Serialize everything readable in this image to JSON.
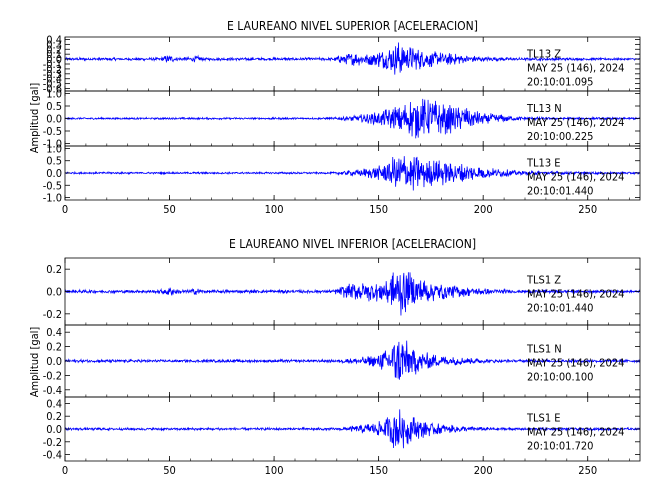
{
  "chart_data": [
    {
      "type": "line",
      "title": "E LAUREANO NIVEL SUPERIOR [ACELERACION]",
      "ylabel": "Amplitud [gal]",
      "xlabel": "",
      "xlim": [
        0,
        275
      ],
      "x_ticks": [
        "0",
        "50",
        "100",
        "150",
        "200",
        "250"
      ],
      "grid": false,
      "color": "#0000ff",
      "panels": [
        {
          "station": "TL13",
          "component": "Z",
          "date": "MAY 25 (146), 2024",
          "time": "20:10:01.095",
          "ylim": [
            -0.65,
            0.45
          ],
          "y_ticks": [
            "0.4",
            "0.3",
            "0.2",
            "0.1",
            "0.0",
            "-0.1",
            "-0.2",
            "-0.3",
            "-0.4",
            "-0.5",
            "-0.6"
          ],
          "envelope": [
            [
              0,
              0.03
            ],
            [
              45,
              0.03
            ],
            [
              50,
              0.1
            ],
            [
              53,
              0.04
            ],
            [
              60,
              0.04
            ],
            [
              63,
              0.08
            ],
            [
              66,
              0.03
            ],
            [
              128,
              0.03
            ],
            [
              132,
              0.1
            ],
            [
              138,
              0.15
            ],
            [
              145,
              0.12
            ],
            [
              150,
              0.18
            ],
            [
              155,
              0.25
            ],
            [
              160,
              0.4
            ],
            [
              163,
              0.3
            ],
            [
              170,
              0.22
            ],
            [
              180,
              0.15
            ],
            [
              190,
              0.1
            ],
            [
              200,
              0.05
            ],
            [
              215,
              0.03
            ],
            [
              275,
              0.02
            ]
          ]
        },
        {
          "station": "TL13",
          "component": "N",
          "date": "MAY 25 (146), 2024",
          "time": "20:10:00.225",
          "ylim": [
            -1.1,
            1.1
          ],
          "y_ticks": [
            "1.0",
            "0.5",
            "0.0",
            "-0.5",
            "-1.0"
          ],
          "envelope": [
            [
              0,
              0.04
            ],
            [
              128,
              0.04
            ],
            [
              140,
              0.15
            ],
            [
              150,
              0.3
            ],
            [
              158,
              0.55
            ],
            [
              165,
              0.85
            ],
            [
              172,
              0.9
            ],
            [
              180,
              0.7
            ],
            [
              190,
              0.5
            ],
            [
              200,
              0.25
            ],
            [
              215,
              0.1
            ],
            [
              230,
              0.05
            ],
            [
              275,
              0.04
            ]
          ]
        },
        {
          "station": "TL13",
          "component": "E",
          "date": "MAY 25 (146), 2024",
          "time": "20:10:01.440",
          "ylim": [
            -1.1,
            1.1
          ],
          "y_ticks": [
            "1.0",
            "0.5",
            "0.0",
            "-0.5",
            "-1.0"
          ],
          "envelope": [
            [
              0,
              0.04
            ],
            [
              128,
              0.04
            ],
            [
              140,
              0.15
            ],
            [
              150,
              0.3
            ],
            [
              157,
              0.7
            ],
            [
              162,
              0.9
            ],
            [
              168,
              0.75
            ],
            [
              175,
              0.6
            ],
            [
              185,
              0.5
            ],
            [
              195,
              0.35
            ],
            [
              205,
              0.2
            ],
            [
              220,
              0.08
            ],
            [
              275,
              0.04
            ]
          ]
        }
      ]
    },
    {
      "type": "line",
      "title": "E LAUREANO NIVEL INFERIOR [ACELERACION]",
      "ylabel": "Amplitud [gal]",
      "xlabel": "",
      "xlim": [
        0,
        275
      ],
      "x_ticks": [
        "0",
        "50",
        "100",
        "150",
        "200",
        "250"
      ],
      "grid": false,
      "color": "#0000ff",
      "panels": [
        {
          "station": "TLS1",
          "component": "Z",
          "date": "MAY 25 (146), 2024",
          "time": "20:10:01.440",
          "ylim": [
            -0.3,
            0.3
          ],
          "y_ticks": [
            "0.2",
            "0.0",
            "-0.2"
          ],
          "envelope": [
            [
              0,
              0.015
            ],
            [
              45,
              0.015
            ],
            [
              50,
              0.05
            ],
            [
              54,
              0.02
            ],
            [
              60,
              0.02
            ],
            [
              63,
              0.035
            ],
            [
              66,
              0.015
            ],
            [
              128,
              0.015
            ],
            [
              132,
              0.05
            ],
            [
              138,
              0.08
            ],
            [
              148,
              0.1
            ],
            [
              155,
              0.15
            ],
            [
              160,
              0.27
            ],
            [
              163,
              0.2
            ],
            [
              170,
              0.12
            ],
            [
              180,
              0.08
            ],
            [
              190,
              0.05
            ],
            [
              200,
              0.03
            ],
            [
              215,
              0.015
            ],
            [
              275,
              0.01
            ]
          ]
        },
        {
          "station": "TLS1",
          "component": "N",
          "date": "MAY 25 (146), 2024",
          "time": "20:10:00.100",
          "ylim": [
            -0.5,
            0.5
          ],
          "y_ticks": [
            "0.4",
            "0.2",
            "0.0",
            "-0.2",
            "-0.4"
          ],
          "envelope": [
            [
              0,
              0.02
            ],
            [
              130,
              0.02
            ],
            [
              140,
              0.05
            ],
            [
              150,
              0.1
            ],
            [
              156,
              0.25
            ],
            [
              160,
              0.45
            ],
            [
              163,
              0.3
            ],
            [
              170,
              0.15
            ],
            [
              180,
              0.08
            ],
            [
              195,
              0.04
            ],
            [
              210,
              0.02
            ],
            [
              275,
              0.02
            ]
          ]
        },
        {
          "station": "TLS1",
          "component": "E",
          "date": "MAY 25 (146), 2024",
          "time": "20:10:01.720",
          "ylim": [
            -0.5,
            0.5
          ],
          "y_ticks": [
            "0.4",
            "0.2",
            "0.0",
            "-0.2",
            "-0.4"
          ],
          "envelope": [
            [
              0,
              0.02
            ],
            [
              130,
              0.02
            ],
            [
              140,
              0.06
            ],
            [
              150,
              0.12
            ],
            [
              155,
              0.25
            ],
            [
              159,
              0.38
            ],
            [
              163,
              0.28
            ],
            [
              170,
              0.15
            ],
            [
              180,
              0.08
            ],
            [
              195,
              0.04
            ],
            [
              210,
              0.02
            ],
            [
              275,
              0.02
            ]
          ]
        }
      ]
    }
  ]
}
